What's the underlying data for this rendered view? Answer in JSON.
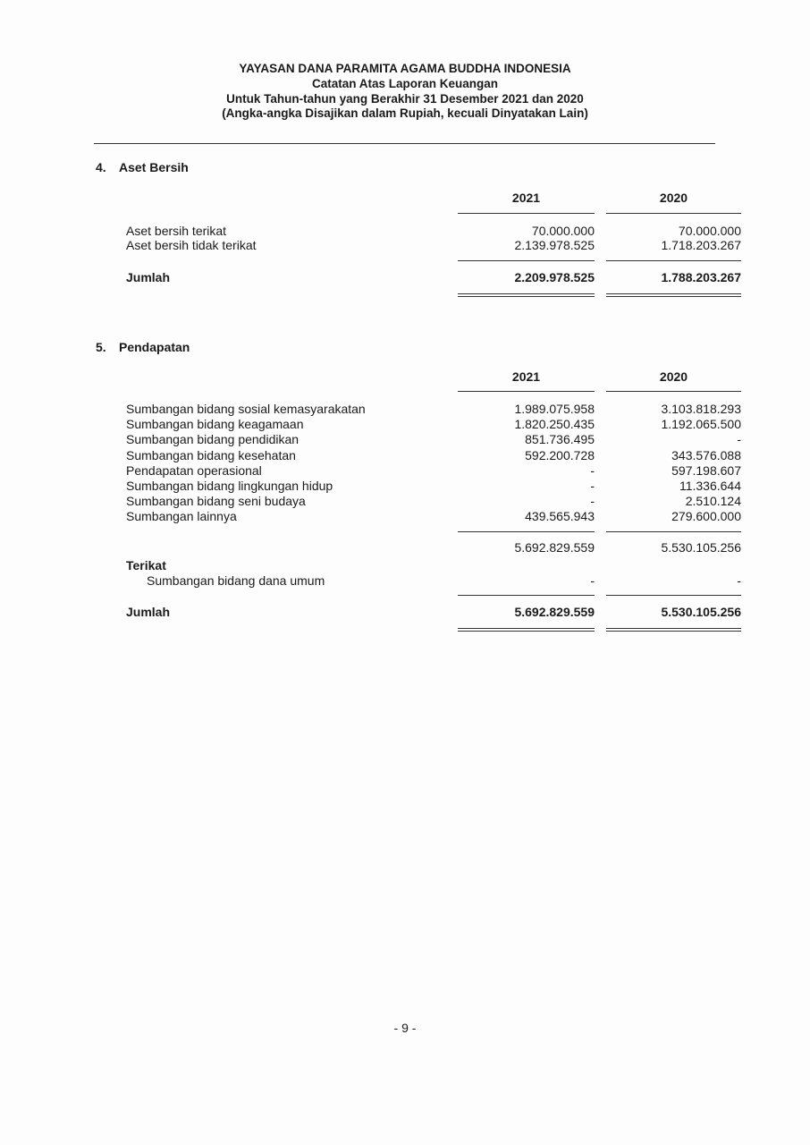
{
  "header": {
    "org": "YAYASAN DANA PARAMITA AGAMA BUDDHA INDONESIA",
    "subtitle": "Catatan Atas Laporan Keuangan",
    "period": "Untuk Tahun-tahun yang Berakhir 31 Desember 2021 dan 2020",
    "note": "(Angka-angka Disajikan dalam Rupiah, kecuali Dinyatakan Lain)"
  },
  "section4": {
    "number": "4.",
    "title": "Aset Bersih",
    "years": [
      "2021",
      "2020"
    ],
    "rows": [
      {
        "label": "Aset bersih terikat",
        "v2021": "70.000.000",
        "v2020": "70.000.000"
      },
      {
        "label": "Aset bersih tidak terikat",
        "v2021": "2.139.978.525",
        "v2020": "1.718.203.267"
      }
    ],
    "total": {
      "label": "Jumlah",
      "v2021": "2.209.978.525",
      "v2020": "1.788.203.267"
    }
  },
  "section5": {
    "number": "5.",
    "title": "Pendapatan",
    "years": [
      "2021",
      "2020"
    ],
    "rows": [
      {
        "label": "Sumbangan bidang sosial kemasyarakatan",
        "v2021": "1.989.075.958",
        "v2020": "3.103.818.293"
      },
      {
        "label": "Sumbangan bidang keagamaan",
        "v2021": "1.820.250.435",
        "v2020": "1.192.065.500"
      },
      {
        "label": "Sumbangan bidang pendidikan",
        "v2021": "851.736.495",
        "v2020": "-"
      },
      {
        "label": "Sumbangan bidang kesehatan",
        "v2021": "592.200.728",
        "v2020": "343.576.088"
      },
      {
        "label": "Pendapatan operasional",
        "v2021": "-",
        "v2020": "597.198.607"
      },
      {
        "label": "Sumbangan bidang lingkungan hidup",
        "v2021": "-",
        "v2020": "11.336.644"
      },
      {
        "label": "Sumbangan bidang seni budaya",
        "v2021": "-",
        "v2020": "2.510.124"
      },
      {
        "label": "Sumbangan lainnya",
        "v2021": "439.565.943",
        "v2020": "279.600.000"
      }
    ],
    "subtotal": {
      "v2021": "5.692.829.559",
      "v2020": "5.530.105.256"
    },
    "restricted": {
      "heading": "Terikat",
      "label": "Sumbangan bidang dana umum",
      "v2021": "-",
      "v2020": "-"
    },
    "total": {
      "label": "Jumlah",
      "v2021": "5.692.829.559",
      "v2020": "5.530.105.256"
    }
  },
  "footer": {
    "page": "- 9 -"
  }
}
